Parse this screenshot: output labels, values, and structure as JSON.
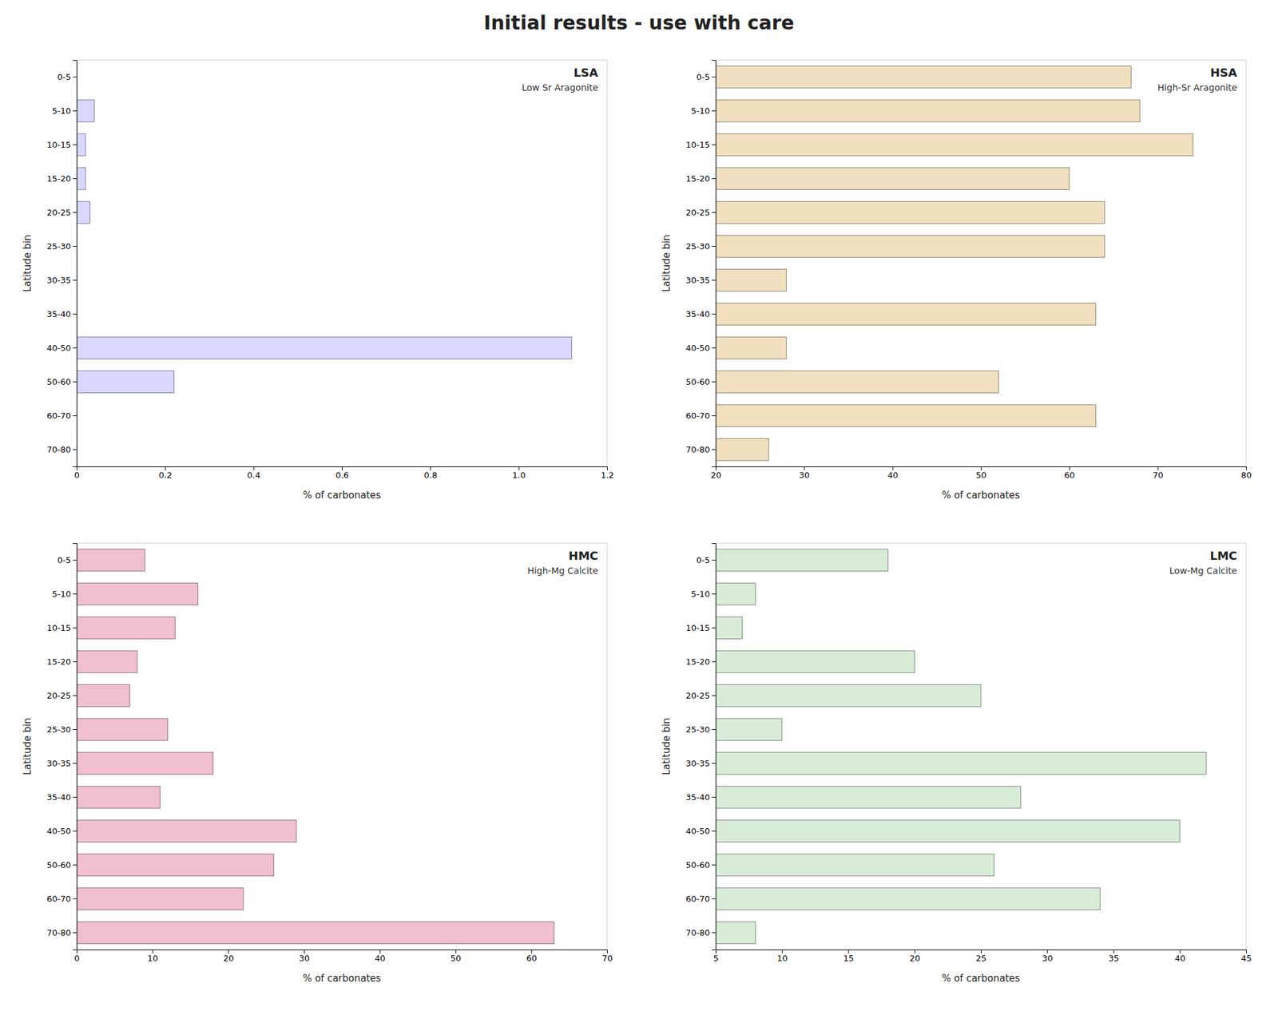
{
  "title": "Initial results - use with care",
  "chart_data": [
    {
      "type": "bar",
      "orientation": "horizontal",
      "title": "LSA",
      "subtitle": "Low Sr Aragonite",
      "categories": [
        "0-5",
        "5-10",
        "10-15",
        "15-20",
        "20-25",
        "25-30",
        "30-35",
        "35-40",
        "40-50",
        "50-60",
        "60-70",
        "70-80"
      ],
      "values": [
        0.0,
        0.04,
        0.02,
        0.02,
        0.03,
        0.0,
        0.0,
        0.0,
        1.12,
        0.22,
        0.0,
        0.0
      ],
      "color": "#d8d8ff",
      "xlim": [
        0,
        1.2
      ],
      "xticks": [
        0,
        0.2,
        0.4,
        0.6,
        0.8,
        {
          "value": 1.0,
          "label": "1.0"
        },
        1.2
      ],
      "xlabel": "% of carbonates",
      "ylabel": "Latitude bin"
    },
    {
      "type": "bar",
      "orientation": "horizontal",
      "title": "HSA",
      "subtitle": "High-Sr Aragonite",
      "categories": [
        "0-5",
        "5-10",
        "10-15",
        "15-20",
        "20-25",
        "25-30",
        "30-35",
        "35-40",
        "40-50",
        "50-60",
        "60-70",
        "70-80"
      ],
      "values": [
        67,
        68,
        74,
        60,
        64,
        64,
        28,
        63,
        28,
        52,
        63,
        26
      ],
      "color": "#f0e0c0",
      "xlim": [
        20,
        80
      ],
      "xticks": [
        20,
        30,
        40,
        50,
        60,
        70,
        80
      ],
      "xlabel": "% of carbonates",
      "ylabel": "Latitude bin"
    },
    {
      "type": "bar",
      "orientation": "horizontal",
      "title": "HMC",
      "subtitle": "High-Mg Calcite",
      "categories": [
        "0-5",
        "5-10",
        "10-15",
        "15-20",
        "20-25",
        "25-30",
        "30-35",
        "35-40",
        "40-50",
        "50-60",
        "60-70",
        "70-80"
      ],
      "values": [
        9,
        16,
        13,
        8,
        7,
        12,
        18,
        11,
        29,
        26,
        22,
        63
      ],
      "color": "#f0c0d0",
      "xlim": [
        0,
        70
      ],
      "xticks": [
        0,
        10,
        20,
        30,
        40,
        50,
        60,
        70
      ],
      "xlabel": "% of carbonates",
      "ylabel": "Latitude bin"
    },
    {
      "type": "bar",
      "orientation": "horizontal",
      "title": "LMC",
      "subtitle": "Low-Mg Calcite",
      "categories": [
        "0-5",
        "5-10",
        "10-15",
        "15-20",
        "20-25",
        "25-30",
        "30-35",
        "35-40",
        "40-50",
        "50-60",
        "60-70",
        "70-80"
      ],
      "values": [
        18,
        8,
        7,
        20,
        25,
        10,
        42,
        28,
        40,
        26,
        34,
        8
      ],
      "color": "#d8ecd8",
      "xlim": [
        5,
        45
      ],
      "xticks": [
        5,
        10,
        15,
        20,
        25,
        30,
        35,
        40,
        45
      ],
      "xlabel": "% of carbonates",
      "ylabel": "Latitude bin"
    }
  ]
}
